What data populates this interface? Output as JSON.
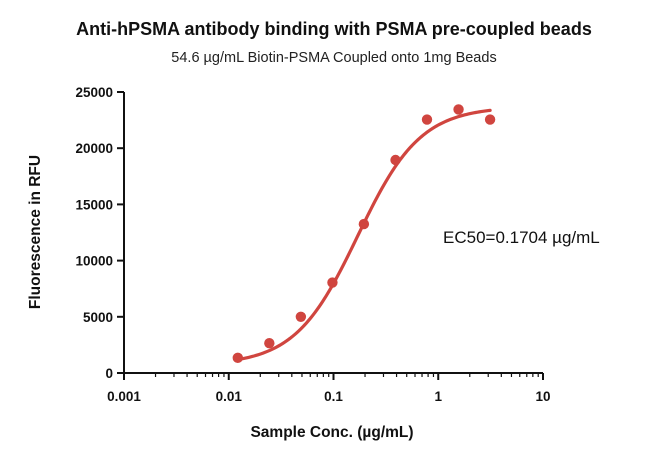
{
  "chart_data": {
    "type": "scatter",
    "title": "Anti-hPSMA antibody binding with PSMA pre-coupled beads",
    "subtitle": "54.6 µg/mL Biotin-PSMA Coupled onto 1mg Beads",
    "xlabel": "Sample Conc. (µg/mL)",
    "ylabel": "Fluorescence in RFU",
    "x_scale": "log10",
    "xlim": [
      0.001,
      10
    ],
    "ylim": [
      0,
      25000
    ],
    "x_ticks": [
      0.001,
      0.01,
      0.1,
      1,
      10
    ],
    "x_tick_labels": [
      "0.001",
      "0.01",
      "0.1",
      "1",
      "10"
    ],
    "y_ticks": [
      0,
      5000,
      10000,
      15000,
      20000,
      25000
    ],
    "y_tick_labels": [
      "0",
      "5000",
      "10000",
      "15000",
      "20000",
      "25000"
    ],
    "grid": false,
    "series": [
      {
        "name": "Anti-hPSMA antibody",
        "color": "#d0453f",
        "x": [
          0.0122,
          0.0244,
          0.0488,
          0.0977,
          0.195,
          0.391,
          0.781,
          1.5625,
          3.125
        ],
        "y": [
          1350,
          2650,
          5000,
          8050,
          13250,
          18950,
          22550,
          23450,
          22550
        ]
      }
    ],
    "fit": {
      "type": "4PL",
      "bottom": 700,
      "top": 23700,
      "ec50": 0.1704,
      "hill": 1.45,
      "x_range": [
        0.0122,
        3.125
      ],
      "color": "#d0453f"
    },
    "annotation": "EC50=0.1704 µg/mL"
  }
}
